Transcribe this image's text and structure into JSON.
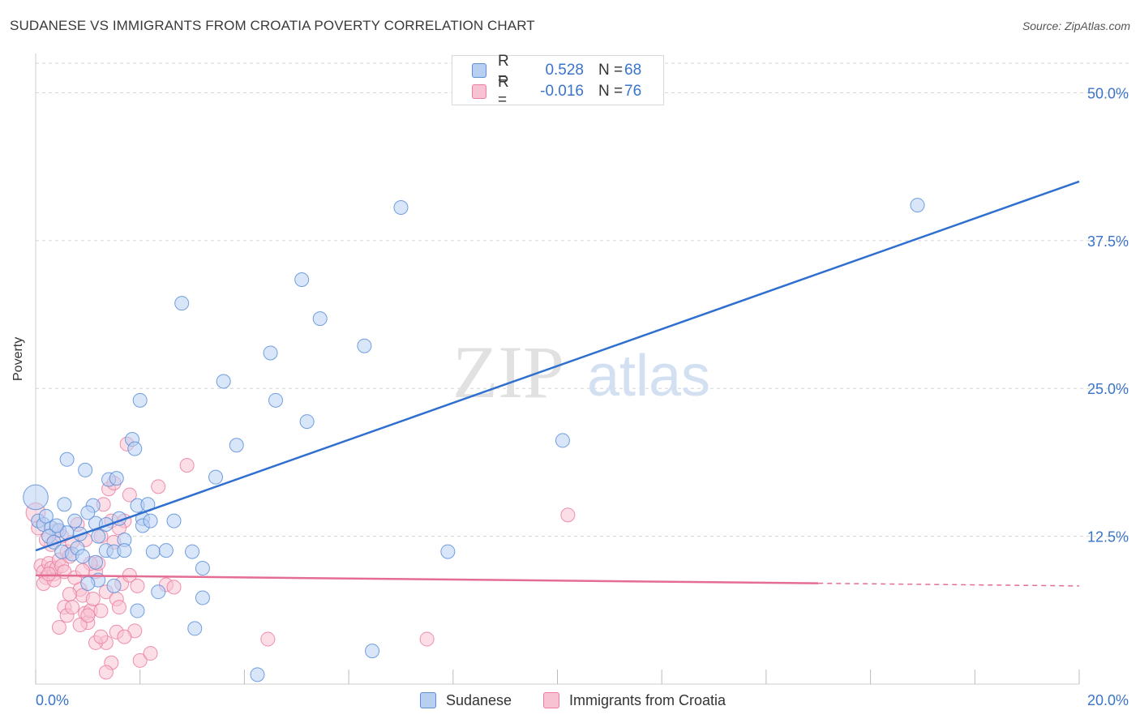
{
  "title": "SUDANESE VS IMMIGRANTS FROM CROATIA POVERTY CORRELATION CHART",
  "source": "Source: ZipAtlas.com",
  "watermark": {
    "zip": "ZIP",
    "atlas": "atlas"
  },
  "legend_top": {
    "rows": [
      {
        "r_label": "R =",
        "r_value": "0.528",
        "n_label": "N =",
        "n_value": "68"
      },
      {
        "r_label": "R =",
        "r_value": "-0.016",
        "n_label": "N =",
        "n_value": "76"
      }
    ]
  },
  "colors": {
    "blue_fill": "#b9cff2",
    "blue_stroke": "#5b8fd8",
    "blue_line": "#2f6fcf",
    "pink_fill": "#f7c3d2",
    "pink_stroke": "#ec7da0",
    "pink_line": "#e46d93",
    "axis_text": "#3a74c9",
    "grid": "#d6d6d6"
  },
  "chart_data": {
    "type": "scatter",
    "title": "SUDANESE VS IMMIGRANTS FROM CROATIA POVERTY CORRELATION CHART",
    "xlabel": "",
    "ylabel": "Poverty",
    "xlim": [
      0,
      20
    ],
    "ylim": [
      0,
      52.5
    ],
    "x_tick_labels": [
      {
        "value": 0,
        "label": "0.0%"
      },
      {
        "value": 20,
        "label": "20.0%"
      }
    ],
    "y_tick_labels": [
      {
        "value": 12.5,
        "label": "12.5%"
      },
      {
        "value": 25,
        "label": "25.0%"
      },
      {
        "value": 37.5,
        "label": "37.5%"
      },
      {
        "value": 50,
        "label": "50.0%"
      }
    ],
    "grid": true,
    "legend_position": "bottom",
    "series": [
      {
        "name": "Sudanese",
        "color": "#5b8fd8",
        "points": [
          [
            0.0,
            15.8,
            1.8
          ],
          [
            0.05,
            13.8,
            1
          ],
          [
            0.15,
            13.5,
            1
          ],
          [
            0.3,
            13.2,
            1
          ],
          [
            0.45,
            13.0,
            1
          ],
          [
            0.6,
            12.8,
            1
          ],
          [
            0.25,
            12.5,
            1
          ],
          [
            0.35,
            12.0,
            1
          ],
          [
            0.5,
            11.2,
            1
          ],
          [
            0.7,
            11.0,
            1
          ],
          [
            0.55,
            15.2,
            1
          ],
          [
            0.6,
            19.0,
            1
          ],
          [
            0.95,
            18.1,
            1
          ],
          [
            1.1,
            15.1,
            1
          ],
          [
            1.15,
            13.6,
            1
          ],
          [
            1.0,
            14.5,
            1
          ],
          [
            0.75,
            13.8,
            1
          ],
          [
            0.85,
            12.7,
            1
          ],
          [
            1.2,
            12.5,
            1
          ],
          [
            1.35,
            13.5,
            1
          ],
          [
            1.35,
            11.3,
            1
          ],
          [
            1.15,
            10.3,
            1
          ],
          [
            1.2,
            8.8,
            1
          ],
          [
            1.5,
            11.2,
            1
          ],
          [
            1.4,
            17.3,
            1
          ],
          [
            1.55,
            17.4,
            1
          ],
          [
            1.6,
            14.0,
            1
          ],
          [
            1.7,
            12.2,
            1
          ],
          [
            1.7,
            11.3,
            1
          ],
          [
            1.85,
            20.7,
            1
          ],
          [
            1.9,
            19.9,
            1
          ],
          [
            1.95,
            15.1,
            1
          ],
          [
            2.05,
            14.0,
            1
          ],
          [
            2.05,
            13.4,
            1
          ],
          [
            2.15,
            15.2,
            1
          ],
          [
            2.2,
            13.8,
            1
          ],
          [
            2.25,
            11.2,
            1
          ],
          [
            2.0,
            24.0,
            1
          ],
          [
            1.5,
            8.3,
            1
          ],
          [
            1.95,
            6.2,
            1
          ],
          [
            2.35,
            7.8,
            1
          ],
          [
            2.5,
            11.3,
            1
          ],
          [
            2.65,
            13.8,
            1
          ],
          [
            2.8,
            32.2,
            1
          ],
          [
            3.0,
            11.2,
            1
          ],
          [
            3.05,
            4.7,
            1
          ],
          [
            3.2,
            7.3,
            1
          ],
          [
            3.2,
            9.8,
            1
          ],
          [
            3.45,
            17.5,
            1
          ],
          [
            3.6,
            25.6,
            1
          ],
          [
            3.85,
            20.2,
            1
          ],
          [
            4.25,
            0.8,
            1
          ],
          [
            4.5,
            28.0,
            1
          ],
          [
            4.6,
            24.0,
            1
          ],
          [
            5.1,
            34.2,
            1
          ],
          [
            5.2,
            22.2,
            1
          ],
          [
            5.45,
            30.9,
            1
          ],
          [
            6.3,
            28.6,
            1
          ],
          [
            6.45,
            2.8,
            1
          ],
          [
            7.0,
            40.3,
            1
          ],
          [
            7.9,
            11.2,
            1
          ],
          [
            10.1,
            20.6,
            1
          ],
          [
            16.9,
            40.5,
            1
          ],
          [
            0.2,
            14.2,
            1
          ],
          [
            0.4,
            13.4,
            1
          ],
          [
            0.8,
            11.5,
            1
          ],
          [
            0.9,
            10.8,
            1
          ],
          [
            1.0,
            8.5,
            1
          ]
        ]
      },
      {
        "name": "Immigrants from Croatia",
        "color": "#ec7da0",
        "points": [
          [
            0.0,
            14.5,
            1.4
          ],
          [
            0.05,
            13.2,
            1
          ],
          [
            0.1,
            10.0,
            1
          ],
          [
            0.15,
            9.5,
            1
          ],
          [
            0.2,
            9.0,
            1
          ],
          [
            0.25,
            10.2,
            1
          ],
          [
            0.3,
            9.8,
            1
          ],
          [
            0.35,
            9.3,
            1
          ],
          [
            0.4,
            9.8,
            1
          ],
          [
            0.45,
            10.5,
            1
          ],
          [
            0.5,
            10.0,
            1
          ],
          [
            0.55,
            9.5,
            1
          ],
          [
            0.6,
            11.2,
            1
          ],
          [
            0.65,
            10.8,
            1
          ],
          [
            0.5,
            12.5,
            1
          ],
          [
            0.4,
            13.0,
            1
          ],
          [
            0.3,
            11.8,
            1
          ],
          [
            0.2,
            12.2,
            1
          ],
          [
            0.15,
            8.5,
            1
          ],
          [
            0.7,
            12.0,
            1
          ],
          [
            0.8,
            13.5,
            1
          ],
          [
            0.75,
            9.0,
            1
          ],
          [
            0.85,
            8.0,
            1
          ],
          [
            0.9,
            7.5,
            1
          ],
          [
            0.95,
            6.0,
            1
          ],
          [
            1.0,
            5.2,
            1
          ],
          [
            0.55,
            6.5,
            1
          ],
          [
            0.6,
            5.8,
            1
          ],
          [
            0.45,
            4.8,
            1
          ],
          [
            0.85,
            5.0,
            1
          ],
          [
            1.05,
            6.2,
            1
          ],
          [
            1.0,
            5.8,
            1
          ],
          [
            1.1,
            7.2,
            1
          ],
          [
            1.15,
            9.5,
            1
          ],
          [
            1.2,
            10.2,
            1
          ],
          [
            1.25,
            12.5,
            1
          ],
          [
            1.3,
            15.2,
            1
          ],
          [
            1.35,
            7.8,
            1
          ],
          [
            1.4,
            16.5,
            1
          ],
          [
            1.45,
            13.8,
            1
          ],
          [
            1.5,
            12.0,
            1
          ],
          [
            1.55,
            7.2,
            1
          ],
          [
            1.6,
            6.5,
            1
          ],
          [
            1.65,
            8.5,
            1
          ],
          [
            1.7,
            13.8,
            1
          ],
          [
            1.75,
            20.3,
            1
          ],
          [
            1.8,
            16.0,
            1
          ],
          [
            1.9,
            4.5,
            1
          ],
          [
            2.0,
            2.0,
            1
          ],
          [
            1.35,
            3.5,
            1
          ],
          [
            1.45,
            1.8,
            1
          ],
          [
            1.15,
            3.5,
            1
          ],
          [
            1.25,
            4.0,
            1
          ],
          [
            1.55,
            4.4,
            1
          ],
          [
            1.7,
            4.0,
            1
          ],
          [
            2.2,
            2.6,
            1
          ],
          [
            2.35,
            16.7,
            1
          ],
          [
            2.5,
            8.4,
            1
          ],
          [
            2.65,
            8.2,
            1
          ],
          [
            2.9,
            18.5,
            1
          ],
          [
            1.35,
            1.0,
            1
          ],
          [
            1.05,
            10.2,
            1
          ],
          [
            0.95,
            12.2,
            1
          ],
          [
            1.6,
            13.2,
            1
          ],
          [
            0.65,
            7.6,
            1
          ],
          [
            0.7,
            6.5,
            1
          ],
          [
            1.5,
            17.0,
            1
          ],
          [
            4.45,
            3.8,
            1
          ],
          [
            7.5,
            3.8,
            1
          ],
          [
            10.2,
            14.3,
            1
          ],
          [
            0.35,
            8.8,
            1
          ],
          [
            0.25,
            9.3,
            1
          ],
          [
            1.25,
            6.2,
            1
          ],
          [
            1.8,
            9.2,
            1
          ],
          [
            1.95,
            8.3,
            1
          ],
          [
            0.9,
            9.6,
            1
          ]
        ]
      }
    ],
    "trend_lines": [
      {
        "series": "Sudanese",
        "x": [
          0,
          20
        ],
        "y": [
          11.3,
          42.5
        ],
        "dashed_from": null
      },
      {
        "series": "Immigrants from Croatia",
        "x": [
          0,
          20
        ],
        "y": [
          9.2,
          8.3
        ],
        "dashed_from": 15
      }
    ]
  },
  "bottom_legend": [
    {
      "label": "Sudanese"
    },
    {
      "label": "Immigrants from Croatia"
    }
  ]
}
